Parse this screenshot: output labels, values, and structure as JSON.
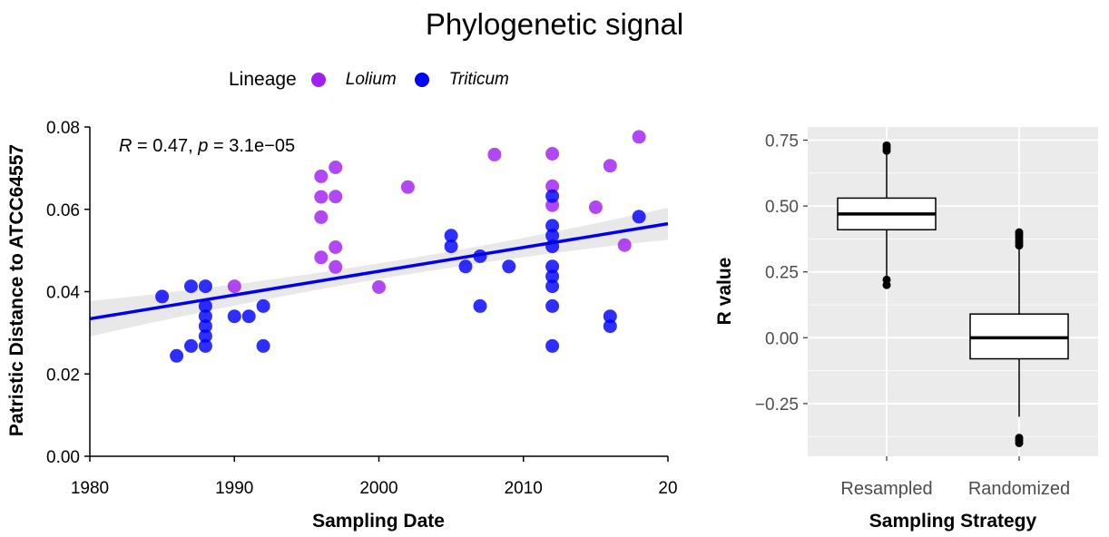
{
  "figure": {
    "title": "Phylogenetic signal"
  },
  "legend": {
    "title": "Lineage",
    "items": [
      {
        "label": "Lolium",
        "color": "#a020f0"
      },
      {
        "label": "Triticum",
        "color": "#0000ff"
      }
    ]
  },
  "chart_data": [
    {
      "type": "scatter",
      "xlabel": "Sampling Date",
      "ylabel": "Patristic Distance to ATCC64557",
      "xlim": [
        1980,
        2020
      ],
      "ylim": [
        0,
        0.08
      ],
      "x_tick_labels": [
        "1980",
        "1990",
        "2000",
        "2010",
        "20"
      ],
      "y_tick_labels": [
        "0.00",
        "0.02",
        "0.04",
        "0.06",
        "0.08"
      ],
      "annotation": {
        "R_label": "R",
        "R_value": " = 0.47, ",
        "p_label": "p",
        "p_value": " = 3.1e−05"
      },
      "trend_line": {
        "x": [
          1980,
          2020
        ],
        "y": [
          0.0334,
          0.0565
        ],
        "color": "#0000ee",
        "confidence_band": true
      },
      "grid": false,
      "series": [
        {
          "name": "Lolium",
          "color": "#a020f0",
          "points": [
            [
              1990,
              0.0413
            ],
            [
              1996,
              0.068
            ],
            [
              1996,
              0.063
            ],
            [
              1996,
              0.0581
            ],
            [
              1996,
              0.0483
            ],
            [
              1997,
              0.0702
            ],
            [
              1997,
              0.0631
            ],
            [
              1997,
              0.0508
            ],
            [
              1997,
              0.046
            ],
            [
              2000,
              0.0411
            ],
            [
              2002,
              0.0654
            ],
            [
              2008,
              0.0733
            ],
            [
              2012,
              0.0735
            ],
            [
              2012,
              0.0656
            ],
            [
              2012,
              0.061
            ],
            [
              2015,
              0.0605
            ],
            [
              2016,
              0.0706
            ],
            [
              2017,
              0.0513
            ],
            [
              2018,
              0.0776
            ]
          ]
        },
        {
          "name": "Triticum",
          "color": "#0000ff",
          "points": [
            [
              1985,
              0.0388
            ],
            [
              1986,
              0.0244
            ],
            [
              1987,
              0.0413
            ],
            [
              1987,
              0.0268
            ],
            [
              1988,
              0.0413
            ],
            [
              1988,
              0.0365
            ],
            [
              1988,
              0.034
            ],
            [
              1988,
              0.0316
            ],
            [
              1988,
              0.0292
            ],
            [
              1988,
              0.0268
            ],
            [
              1990,
              0.034
            ],
            [
              1991,
              0.034
            ],
            [
              1992,
              0.0365
            ],
            [
              1992,
              0.0268
            ],
            [
              2005,
              0.0536
            ],
            [
              2005,
              0.051
            ],
            [
              2006,
              0.0461
            ],
            [
              2007,
              0.0486
            ],
            [
              2007,
              0.0365
            ],
            [
              2009,
              0.0461
            ],
            [
              2012,
              0.0632
            ],
            [
              2012,
              0.056
            ],
            [
              2012,
              0.0536
            ],
            [
              2012,
              0.051
            ],
            [
              2012,
              0.0461
            ],
            [
              2012,
              0.0437
            ],
            [
              2012,
              0.0413
            ],
            [
              2012,
              0.0365
            ],
            [
              2012,
              0.0268
            ],
            [
              2016,
              0.034
            ],
            [
              2016,
              0.0316
            ],
            [
              2018,
              0.0582
            ]
          ]
        }
      ]
    },
    {
      "type": "boxplot",
      "xlabel": "Sampling Strategy",
      "ylabel": "R value",
      "ylim": [
        -0.45,
        0.8
      ],
      "y_ticks": [
        0.75,
        0.5,
        0.25,
        0.0,
        -0.25
      ],
      "y_tick_labels": [
        "0.75",
        "0.50",
        "0.25",
        "0.00",
        "−0.25"
      ],
      "grid": true,
      "categories": [
        "Resampled",
        "Randomized"
      ],
      "boxes": [
        {
          "category": "Resampled",
          "q1": 0.41,
          "median": 0.47,
          "q3": 0.53,
          "whisker_low": 0.23,
          "whisker_high": 0.7,
          "outliers": [
            0.73,
            0.72,
            0.71,
            0.22,
            0.2
          ]
        },
        {
          "category": "Randomized",
          "q1": -0.08,
          "median": 0.0,
          "q3": 0.09,
          "whisker_low": -0.3,
          "whisker_high": 0.34,
          "outliers": [
            0.4,
            0.39,
            0.38,
            0.37,
            0.36,
            0.35,
            -0.38,
            -0.39,
            -0.4
          ]
        }
      ]
    }
  ]
}
